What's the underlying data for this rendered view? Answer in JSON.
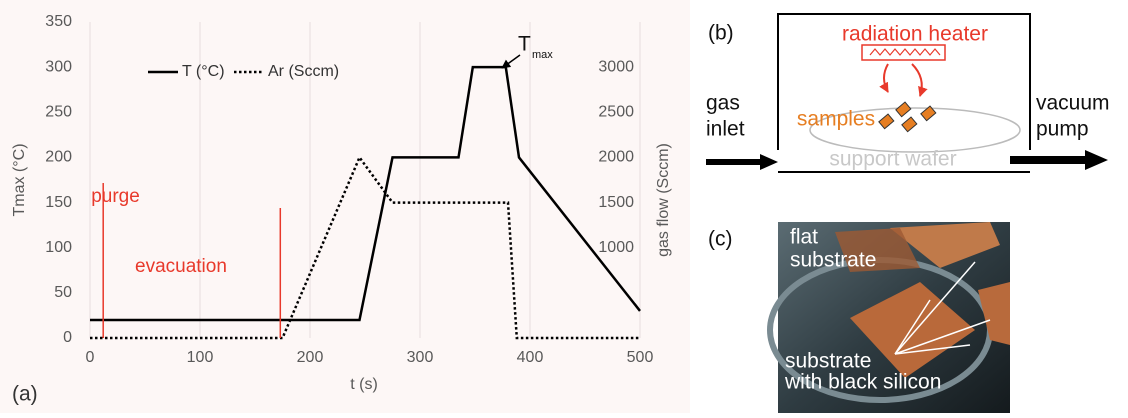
{
  "chart_data": {
    "type": "line",
    "panel_label": "(a)",
    "x_label": "t (s)",
    "y_label": "Tmax (°C)",
    "y2_label": "gas flow  (Sccm)",
    "xlim": [
      0,
      500
    ],
    "xticks": [
      0,
      100,
      200,
      300,
      400,
      500
    ],
    "ylim": [
      0,
      350
    ],
    "yticks": [
      0,
      50,
      100,
      150,
      200,
      250,
      300,
      350
    ],
    "y2lim": [
      0,
      3500
    ],
    "y2ticks": [
      1000,
      1500,
      2000,
      2500,
      3000
    ],
    "grid": "x",
    "series": [
      {
        "name": "T (°C)",
        "color": "#000000",
        "line_style": "solid",
        "x": [
          0,
          245,
          275,
          335,
          348,
          378,
          390,
          500
        ],
        "values": [
          20,
          20,
          200,
          200,
          300,
          300,
          200,
          30
        ]
      },
      {
        "name": "Ar (Sccm)",
        "color": "#000000",
        "line_style": "dotted",
        "axis": "y2",
        "x": [
          0,
          175,
          245,
          275,
          380,
          388,
          500
        ],
        "values": [
          0,
          0,
          2000,
          1500,
          1500,
          0,
          0
        ]
      }
    ],
    "markers": [
      {
        "label": "purge",
        "x": 12,
        "color": "#e8392b"
      },
      {
        "label": "evacuation",
        "x": 173,
        "color": "#e8392b"
      }
    ],
    "peak_label": {
      "text": "T",
      "subscript": "max"
    }
  },
  "diagram": {
    "panel_label": "(b)",
    "heater": "radiation heater",
    "samples": "samples",
    "inlet": [
      "gas",
      "inlet"
    ],
    "pump": [
      "vacuum",
      "pump"
    ],
    "wafer": "support wafer"
  },
  "photo": {
    "panel_label": "(c)",
    "flat": [
      "flat",
      "substrate"
    ],
    "black": [
      "substrate",
      "with black silicon"
    ]
  }
}
